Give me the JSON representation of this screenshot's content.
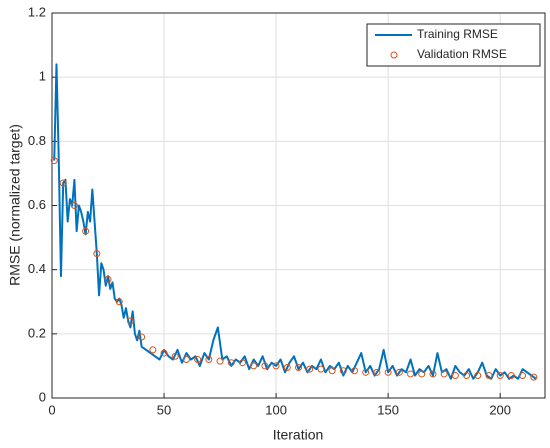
{
  "chart_data": {
    "type": "line",
    "xlabel": "Iteration",
    "ylabel": "RMSE (normalized target)",
    "xlim": [
      0,
      220
    ],
    "xticks": [
      0,
      50,
      100,
      150,
      200
    ],
    "ylim": [
      0,
      1.2
    ],
    "yticks": [
      0,
      0.2,
      0.4,
      0.6,
      0.8,
      1,
      1.2
    ],
    "grid": true,
    "legend": "upper right",
    "series": [
      {
        "name": "Training RMSE",
        "color": "#0072bd",
        "style": "line",
        "x": [
          1,
          2,
          3,
          4,
          5,
          6,
          7,
          8,
          9,
          10,
          11,
          12,
          13,
          14,
          15,
          16,
          17,
          18,
          19,
          20,
          21,
          22,
          23,
          24,
          25,
          26,
          27,
          28,
          29,
          30,
          31,
          32,
          33,
          34,
          35,
          36,
          37,
          38,
          39,
          40,
          42,
          44,
          46,
          48,
          50,
          52,
          54,
          56,
          58,
          60,
          62,
          64,
          66,
          68,
          70,
          72,
          74,
          76,
          78,
          80,
          82,
          84,
          86,
          88,
          90,
          92,
          94,
          96,
          98,
          100,
          102,
          104,
          106,
          108,
          110,
          112,
          114,
          116,
          118,
          120,
          122,
          124,
          126,
          128,
          130,
          132,
          134,
          136,
          138,
          140,
          142,
          144,
          146,
          148,
          150,
          152,
          154,
          156,
          158,
          160,
          162,
          164,
          166,
          168,
          170,
          172,
          174,
          176,
          178,
          180,
          182,
          184,
          186,
          188,
          190,
          192,
          194,
          196,
          198,
          200,
          202,
          204,
          206,
          208,
          210,
          212,
          214,
          216
        ],
        "values": [
          0.74,
          1.04,
          0.75,
          0.38,
          0.67,
          0.68,
          0.55,
          0.62,
          0.6,
          0.68,
          0.52,
          0.6,
          0.58,
          0.55,
          0.51,
          0.58,
          0.55,
          0.65,
          0.55,
          0.45,
          0.32,
          0.42,
          0.4,
          0.35,
          0.38,
          0.34,
          0.36,
          0.31,
          0.3,
          0.31,
          0.29,
          0.25,
          0.28,
          0.24,
          0.22,
          0.27,
          0.2,
          0.18,
          0.21,
          0.16,
          0.15,
          0.14,
          0.13,
          0.12,
          0.15,
          0.13,
          0.12,
          0.15,
          0.11,
          0.14,
          0.12,
          0.13,
          0.1,
          0.14,
          0.12,
          0.18,
          0.22,
          0.12,
          0.13,
          0.1,
          0.12,
          0.11,
          0.13,
          0.09,
          0.12,
          0.1,
          0.13,
          0.09,
          0.11,
          0.1,
          0.12,
          0.08,
          0.11,
          0.13,
          0.09,
          0.11,
          0.08,
          0.1,
          0.09,
          0.12,
          0.08,
          0.1,
          0.09,
          0.11,
          0.07,
          0.1,
          0.08,
          0.11,
          0.14,
          0.08,
          0.1,
          0.07,
          0.09,
          0.15,
          0.08,
          0.1,
          0.07,
          0.09,
          0.08,
          0.12,
          0.07,
          0.09,
          0.08,
          0.1,
          0.07,
          0.14,
          0.08,
          0.09,
          0.06,
          0.1,
          0.08,
          0.07,
          0.09,
          0.06,
          0.08,
          0.11,
          0.07,
          0.06,
          0.09,
          0.07,
          0.08,
          0.06,
          0.07,
          0.06,
          0.09,
          0.08,
          0.07,
          0.06
        ]
      },
      {
        "name": "Validation RMSE",
        "color": "#d95319",
        "style": "marker",
        "x": [
          1,
          5,
          10,
          15,
          20,
          25,
          30,
          35,
          40,
          45,
          50,
          55,
          60,
          65,
          70,
          75,
          80,
          85,
          90,
          95,
          100,
          105,
          110,
          115,
          120,
          125,
          130,
          135,
          140,
          145,
          150,
          155,
          160,
          165,
          170,
          175,
          180,
          185,
          190,
          195,
          200,
          205,
          210,
          215
        ],
        "values": [
          0.74,
          0.67,
          0.6,
          0.52,
          0.45,
          0.37,
          0.3,
          0.24,
          0.19,
          0.15,
          0.14,
          0.13,
          0.12,
          0.12,
          0.12,
          0.115,
          0.11,
          0.11,
          0.1,
          0.1,
          0.1,
          0.095,
          0.095,
          0.09,
          0.09,
          0.085,
          0.085,
          0.085,
          0.08,
          0.08,
          0.08,
          0.08,
          0.075,
          0.075,
          0.075,
          0.075,
          0.07,
          0.07,
          0.07,
          0.07,
          0.07,
          0.07,
          0.07,
          0.065
        ]
      }
    ]
  }
}
